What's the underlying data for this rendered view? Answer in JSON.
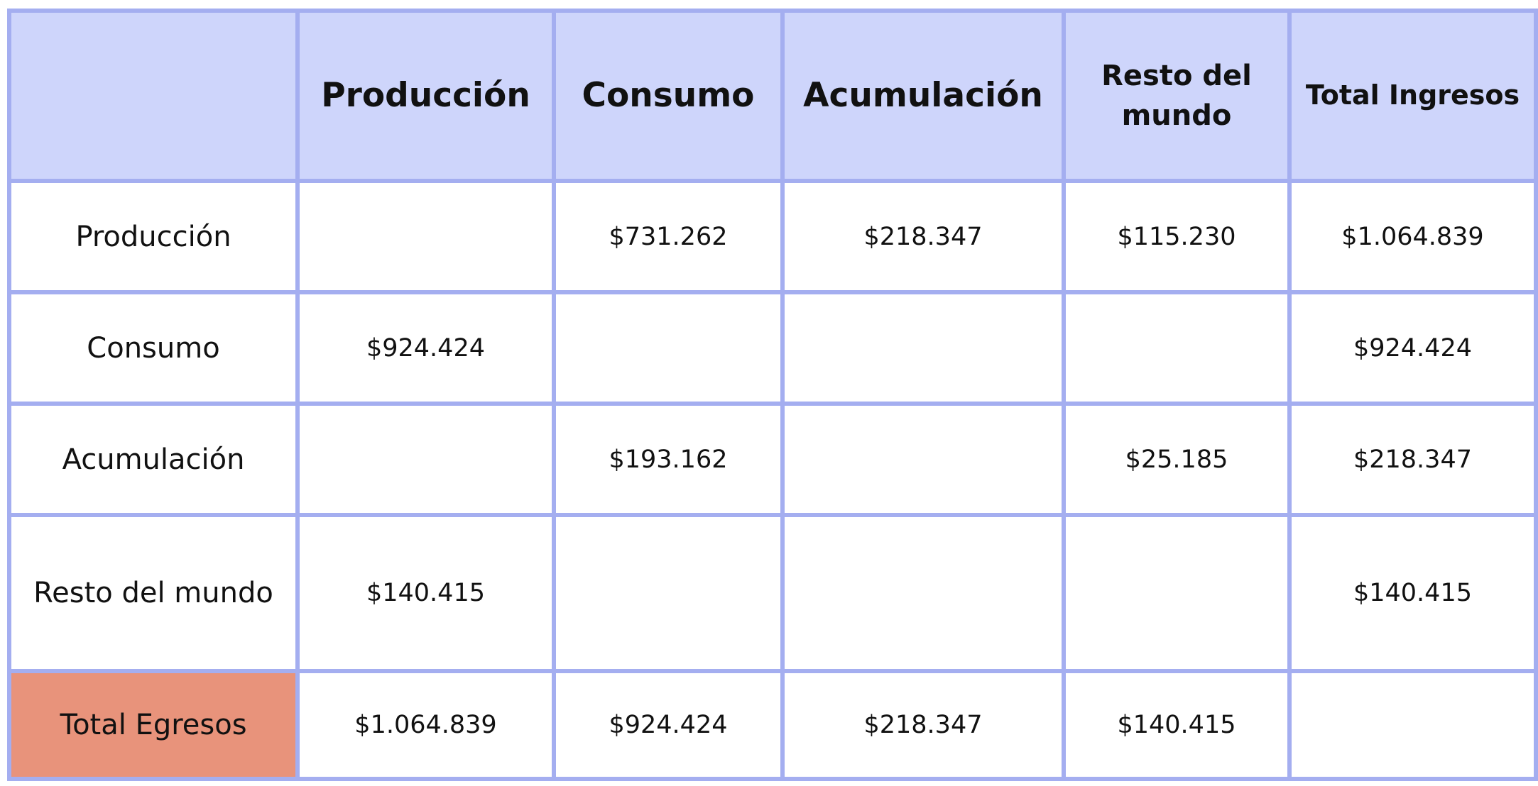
{
  "table": {
    "corner": "",
    "columns": [
      "Producción",
      "Consumo",
      "Acumulación",
      "Resto del mundo",
      "Total Ingresos"
    ],
    "rows": [
      {
        "label": "Producción",
        "cells": [
          "",
          "$731.262",
          "$218.347",
          "$115.230",
          "$1.064.839"
        ]
      },
      {
        "label": "Consumo",
        "cells": [
          "$924.424",
          "",
          "",
          "",
          "$924.424"
        ]
      },
      {
        "label": "Acumulación",
        "cells": [
          "",
          "$193.162",
          "",
          "$25.185",
          "$218.347"
        ]
      },
      {
        "label": "Resto del mundo",
        "cells": [
          "$140.415",
          "",
          "",
          "",
          "$140.415"
        ]
      },
      {
        "label": "Total Egresos",
        "cells": [
          "$1.064.839",
          "$924.424",
          "$218.347",
          "$140.415",
          ""
        ]
      }
    ]
  },
  "colors": {
    "header_background": "#ced5fb",
    "grid_border": "#a4aef0",
    "total_egresos_background": "#e8937b",
    "cell_background": "#ffffff"
  }
}
